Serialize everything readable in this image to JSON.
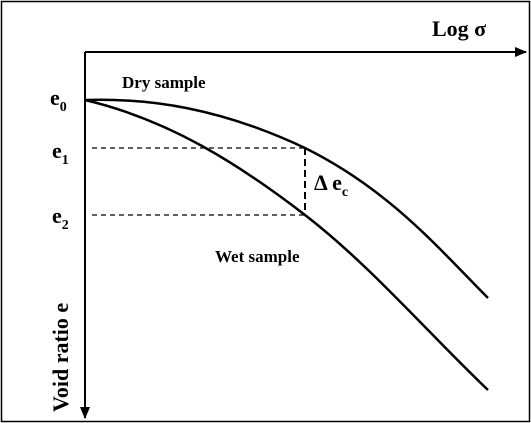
{
  "axes": {
    "x_label": "Log σ",
    "y_label": "Void ratio e"
  },
  "levels": [
    {
      "base": "e",
      "sub": "0"
    },
    {
      "base": "e",
      "sub": "1"
    },
    {
      "base": "e",
      "sub": "2"
    }
  ],
  "curves": {
    "dry": "Dry sample",
    "wet": "Wet sample"
  },
  "difference": {
    "base": "Δ e",
    "sub": "c"
  }
}
